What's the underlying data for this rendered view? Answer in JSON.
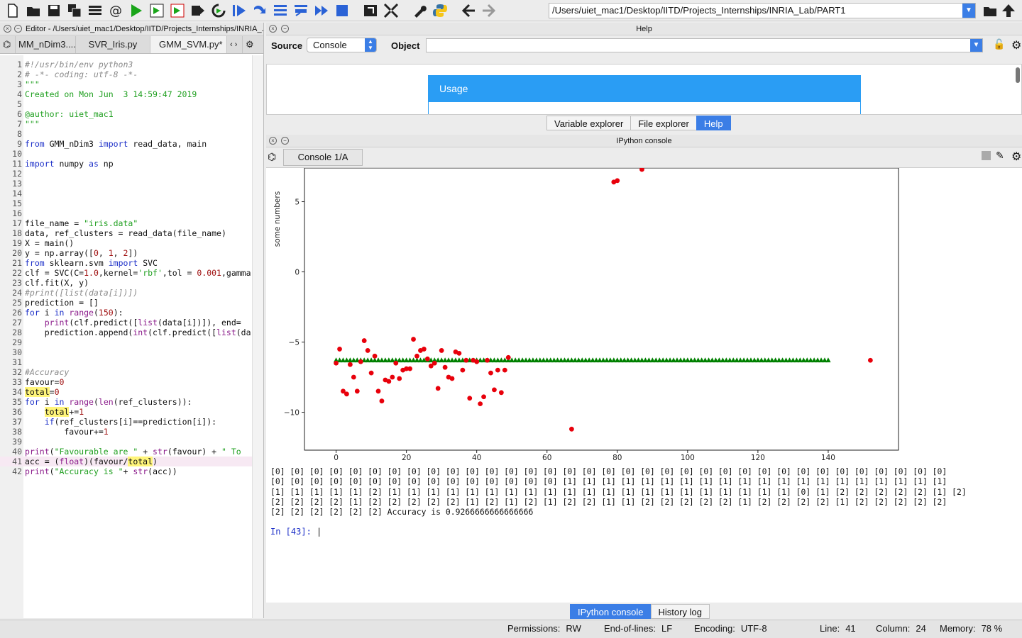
{
  "toolbar": {
    "path": "/Users/uiet_mac1/Desktop/IITD/Projects_Internships/INRIA_Lab/PART1",
    "icons": [
      "new-file-icon",
      "open-folder-icon",
      "save-icon",
      "save-all-icon",
      "list-icon",
      "at-sign-icon",
      "run-icon",
      "run-cell-icon",
      "run-cell-advance-icon",
      "run-selection-icon",
      "rerun-icon",
      "debug-icon",
      "step-icon",
      "step-into-icon",
      "step-return-icon",
      "continue-icon",
      "stop-icon",
      "maximize-pane-icon",
      "fullscreen-icon",
      "wrench-icon",
      "python-icon",
      "back-arrow-icon",
      "forward-arrow-icon"
    ]
  },
  "editor": {
    "title": "Editor - /Users/uiet_mac1/Desktop/IITD/Projects_Internships/INRIA_...",
    "tabs": [
      "MM_nDim3....",
      "SVR_Iris.py",
      "GMM_SVM.py*"
    ],
    "current_line": 41
  },
  "help": {
    "title": "Help",
    "source_label": "Source",
    "source_value": "Console",
    "object_label": "Object",
    "usage_title": "Usage",
    "tabs": [
      "Variable explorer",
      "File explorer",
      "Help"
    ]
  },
  "console": {
    "title": "IPython console",
    "tab": "Console 1/A",
    "output_lines": [
      "[0] [0] [0] [0] [0] [0] [0] [0] [0] [0] [0] [0] [0] [0] [0] [0] [0] [0] [0] [0] [0] [0] [0] [0] [0] [0] [0] [0] [0] [0] [0] [0] [0] [0] [0]",
      "[0] [0] [0] [0] [0] [0] [0] [0] [0] [0] [0] [0] [0] [0] [0] [1] [1] [1] [1] [1] [1] [1] [1] [1] [1] [1] [1] [1] [1] [1] [1] [1] [1] [1] [1]",
      "[1] [1] [1] [1] [1] [2] [1] [1] [1] [1] [1] [1] [1] [1] [1] [1] [1] [1] [1] [1] [1] [1] [1] [1] [1] [1] [1] [0] [1] [2] [2] [2] [2] [2] [1] [2]",
      "[2] [2] [2] [2] [1] [2] [2] [2] [2] [2] [1] [2] [1] [2] [1] [2] [2] [1] [1] [2] [2] [2] [2] [2] [1] [2] [2] [2] [2] [1] [2] [2] [2] [2] [2]",
      "[2] [2] [2] [2] [2] [2] Accuracy is 0.9266666666666666"
    ],
    "prompt": "In [43]:",
    "bottom_tabs": [
      "IPython console",
      "History log"
    ]
  },
  "status": {
    "permissions_label": "Permissions:",
    "permissions_value": "RW",
    "eol_label": "End-of-lines:",
    "eol_value": "LF",
    "encoding_label": "Encoding:",
    "encoding_value": "UTF-8",
    "line_label": "Line:",
    "line_value": "41",
    "column_label": "Column:",
    "column_value": "24",
    "memory_label": "Memory:",
    "memory_value": "78 %"
  },
  "chart_data": {
    "type": "scatter",
    "ylabel": "some numbers",
    "xlim": [
      -9,
      160
    ],
    "ylim": [
      -12.7,
      7.4
    ],
    "xticks": [
      0,
      20,
      40,
      60,
      80,
      100,
      120,
      140
    ],
    "yticks": [
      5,
      0,
      -5,
      -10
    ],
    "series": [
      {
        "marker": "circle",
        "color": "#e8000b",
        "points": [
          [
            0,
            -6.5
          ],
          [
            1,
            -5.5
          ],
          [
            2,
            -8.5
          ],
          [
            3,
            -8.7
          ],
          [
            4,
            -6.6
          ],
          [
            5,
            -7.5
          ],
          [
            6,
            -8.5
          ],
          [
            7,
            -6.4
          ],
          [
            8,
            -4.9
          ],
          [
            9,
            -5.6
          ],
          [
            10,
            -7.2
          ],
          [
            11,
            -6.0
          ],
          [
            12,
            -8.5
          ],
          [
            13,
            -9.2
          ],
          [
            14,
            -7.7
          ],
          [
            15,
            -7.8
          ],
          [
            16,
            -7.5
          ],
          [
            17,
            -6.5
          ],
          [
            18,
            -7.6
          ],
          [
            19,
            -7.0
          ],
          [
            20,
            -6.9
          ],
          [
            21,
            -6.9
          ],
          [
            22,
            -4.8
          ],
          [
            23,
            -6.0
          ],
          [
            24,
            -5.6
          ],
          [
            25,
            -5.5
          ],
          [
            26,
            -6.2
          ],
          [
            27,
            -6.7
          ],
          [
            28,
            -6.5
          ],
          [
            29,
            -8.3
          ],
          [
            30,
            -5.6
          ],
          [
            31,
            -6.8
          ],
          [
            32,
            -7.5
          ],
          [
            33,
            -7.6
          ],
          [
            34,
            -5.7
          ],
          [
            35,
            -5.8
          ],
          [
            36,
            -7.0
          ],
          [
            37,
            -6.3
          ],
          [
            38,
            -9.0
          ],
          [
            39,
            -6.3
          ],
          [
            40,
            -6.4
          ],
          [
            41,
            -9.4
          ],
          [
            42,
            -8.9
          ],
          [
            43,
            -6.3
          ],
          [
            44,
            -7.2
          ],
          [
            45,
            -8.4
          ],
          [
            46,
            -7.0
          ],
          [
            47,
            -8.6
          ],
          [
            48,
            -7.0
          ],
          [
            49,
            -6.1
          ],
          [
            67,
            -11.2
          ],
          [
            79,
            6.4
          ],
          [
            80,
            6.5
          ],
          [
            87,
            7.3
          ],
          [
            152,
            -6.3
          ]
        ]
      },
      {
        "marker": "triangle",
        "color": "#008000",
        "points": "triangles at y=-6.3 for x=0..140"
      }
    ]
  }
}
